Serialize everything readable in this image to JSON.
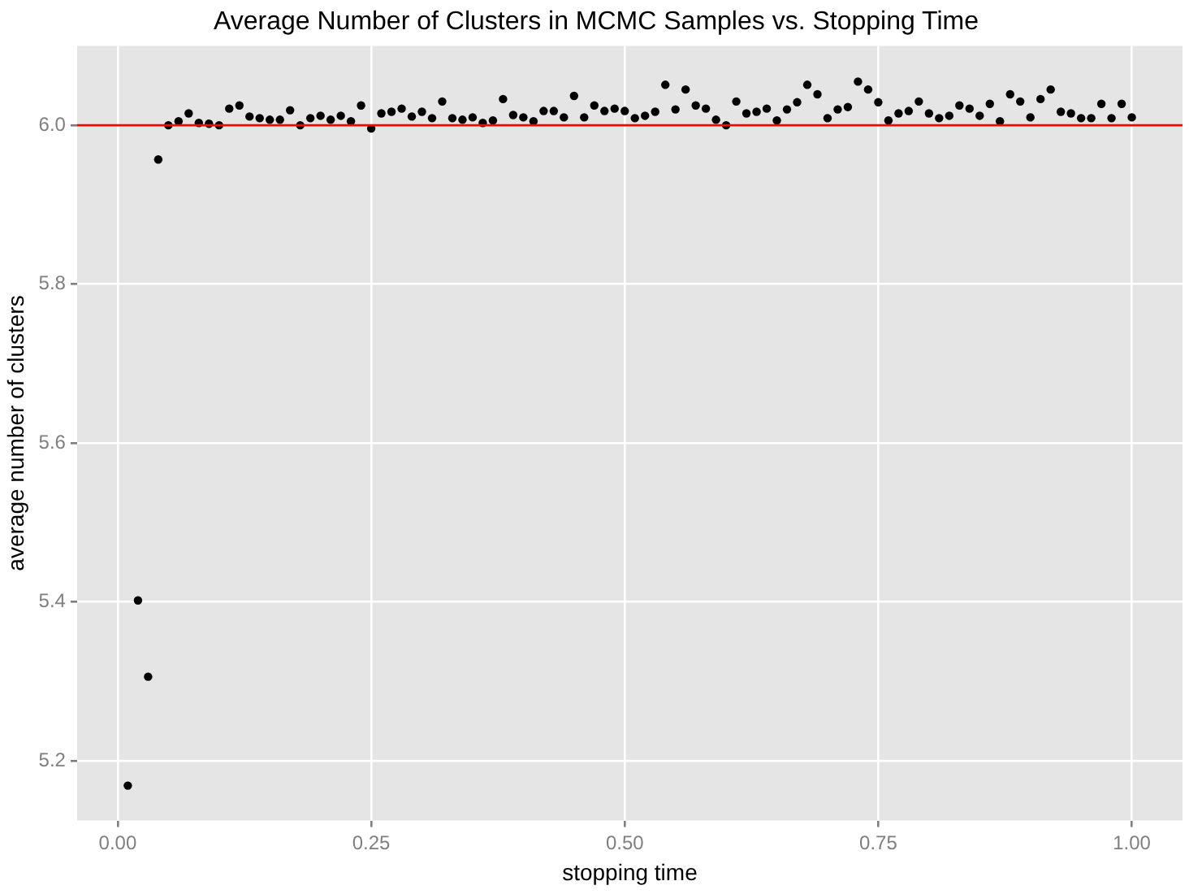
{
  "chart_data": {
    "type": "scatter",
    "title": "Average Number of Clusters in MCMC Samples vs. Stopping Time",
    "xlabel": "stopping time",
    "ylabel": "average number of clusters",
    "x": [
      0.01,
      0.02,
      0.03,
      0.04,
      0.05,
      0.06,
      0.07,
      0.08,
      0.09,
      0.1,
      0.11,
      0.12,
      0.13,
      0.14,
      0.15,
      0.16,
      0.17,
      0.18,
      0.19,
      0.2,
      0.21,
      0.22,
      0.23,
      0.24,
      0.25,
      0.26,
      0.27,
      0.28,
      0.29,
      0.3,
      0.31,
      0.32,
      0.33,
      0.34,
      0.35,
      0.36,
      0.37,
      0.38,
      0.39,
      0.4,
      0.41,
      0.42,
      0.43,
      0.44,
      0.45,
      0.46,
      0.47,
      0.48,
      0.49,
      0.5,
      0.51,
      0.52,
      0.53,
      0.54,
      0.55,
      0.56,
      0.57,
      0.58,
      0.59,
      0.6,
      0.61,
      0.62,
      0.63,
      0.64,
      0.65,
      0.66,
      0.67,
      0.68,
      0.69,
      0.7,
      0.71,
      0.72,
      0.73,
      0.74,
      0.75,
      0.76,
      0.77,
      0.78,
      0.79,
      0.8,
      0.81,
      0.82,
      0.83,
      0.84,
      0.85,
      0.86,
      0.87,
      0.88,
      0.89,
      0.9,
      0.91,
      0.92,
      0.93,
      0.94,
      0.95,
      0.96,
      0.97,
      0.98,
      0.99,
      1.0
    ],
    "series": [
      {
        "color": "#000000",
        "values": [
          5.169,
          5.402,
          5.306,
          5.957,
          6.0,
          6.005,
          6.015,
          6.003,
          6.002,
          6.0,
          6.021,
          6.025,
          6.011,
          6.009,
          6.007,
          6.007,
          6.019,
          6.0,
          6.009,
          6.012,
          6.007,
          6.012,
          6.005,
          6.025,
          5.996,
          6.015,
          6.017,
          6.021,
          6.011,
          6.017,
          6.009,
          6.03,
          6.009,
          6.007,
          6.01,
          6.003,
          6.006,
          6.033,
          6.013,
          6.01,
          6.005,
          6.018,
          6.018,
          6.01,
          6.037,
          6.01,
          6.025,
          6.018,
          6.021,
          6.018,
          6.009,
          6.012,
          6.017,
          6.051,
          6.02,
          6.045,
          6.025,
          6.021,
          6.007,
          6.0,
          6.03,
          6.015,
          6.017,
          6.021,
          6.006,
          6.02,
          6.029,
          6.051,
          6.039,
          6.009,
          6.02,
          6.023,
          6.055,
          6.045,
          6.029,
          6.006,
          6.015,
          6.018,
          6.03,
          6.015,
          6.009,
          6.012,
          6.025,
          6.021,
          6.012,
          6.027,
          6.005,
          6.039,
          6.03,
          6.01,
          6.033,
          6.045,
          6.017,
          6.015,
          6.009,
          6.009,
          6.027,
          6.009,
          6.027,
          6.01
        ]
      }
    ],
    "xlim": [
      -0.04,
      1.05
    ],
    "xticks": [
      {
        "value": 0,
        "label": "0.00"
      },
      {
        "value": 0.25,
        "label": "0.25"
      },
      {
        "value": 0.5,
        "label": "0.50"
      },
      {
        "value": 0.75,
        "label": "0.75"
      },
      {
        "value": 1,
        "label": "1.00"
      }
    ],
    "ylim": [
      5.125,
      6.1
    ],
    "yticks": [
      5.2,
      5.4,
      5.6,
      5.8,
      {
        "value": 6,
        "label": "6.0"
      }
    ],
    "ref_lines": [
      {
        "axis": "y",
        "value": 6,
        "color": "#ff0000"
      }
    ],
    "grid": true,
    "legend": false,
    "marker": "circle"
  }
}
